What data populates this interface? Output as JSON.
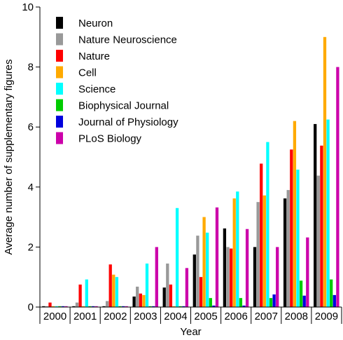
{
  "chart_data": {
    "type": "bar",
    "title": "",
    "xlabel": "Year",
    "ylabel": "Average number of supplementary figures",
    "ylim": [
      0,
      10
    ],
    "yticks": [
      0,
      2,
      4,
      6,
      8,
      10
    ],
    "grid": false,
    "legend_position": "top-left",
    "categories": [
      "2000",
      "2001",
      "2002",
      "2003",
      "2004",
      "2005",
      "2006",
      "2007",
      "2008",
      "2009"
    ],
    "series": [
      {
        "name": "Neuron",
        "color": "#000000",
        "values": [
          0,
          0,
          0,
          0.35,
          0.65,
          1.75,
          2.62,
          2.0,
          3.62,
          6.1
        ]
      },
      {
        "name": "Nature Neuroscience",
        "color": "#999999",
        "values": [
          0,
          0.15,
          0.2,
          0.68,
          1.45,
          2.38,
          2.0,
          3.5,
          3.9,
          4.38
        ]
      },
      {
        "name": "Nature",
        "color": "#ff0000",
        "values": [
          0.15,
          0.75,
          1.42,
          0.45,
          0.75,
          1.0,
          1.95,
          4.78,
          5.25,
          5.38
        ]
      },
      {
        "name": "Cell",
        "color": "#ffaa00",
        "values": [
          0,
          0,
          1.08,
          0.4,
          0,
          3.0,
          3.62,
          3.72,
          6.2,
          9.0
        ]
      },
      {
        "name": "Science",
        "color": "#00ffff",
        "values": [
          0,
          0.92,
          1.0,
          1.45,
          3.3,
          2.48,
          3.85,
          5.5,
          4.58,
          6.25
        ]
      },
      {
        "name": "Biophysical Journal",
        "color": "#00cc00",
        "values": [
          0,
          0,
          0,
          0,
          0,
          0.3,
          0.3,
          0.3,
          0.88,
          0.92
        ]
      },
      {
        "name": "Journal of Physiology",
        "color": "#0000dd",
        "values": [
          0,
          0,
          0,
          0,
          0,
          0.05,
          0.05,
          0.42,
          0.38,
          0.4
        ]
      },
      {
        "name": "PLoS Biology",
        "color": "#cc00aa",
        "values": [
          0,
          0,
          0,
          2.0,
          1.3,
          3.32,
          2.6,
          2.0,
          2.32,
          8.0
        ]
      }
    ]
  }
}
